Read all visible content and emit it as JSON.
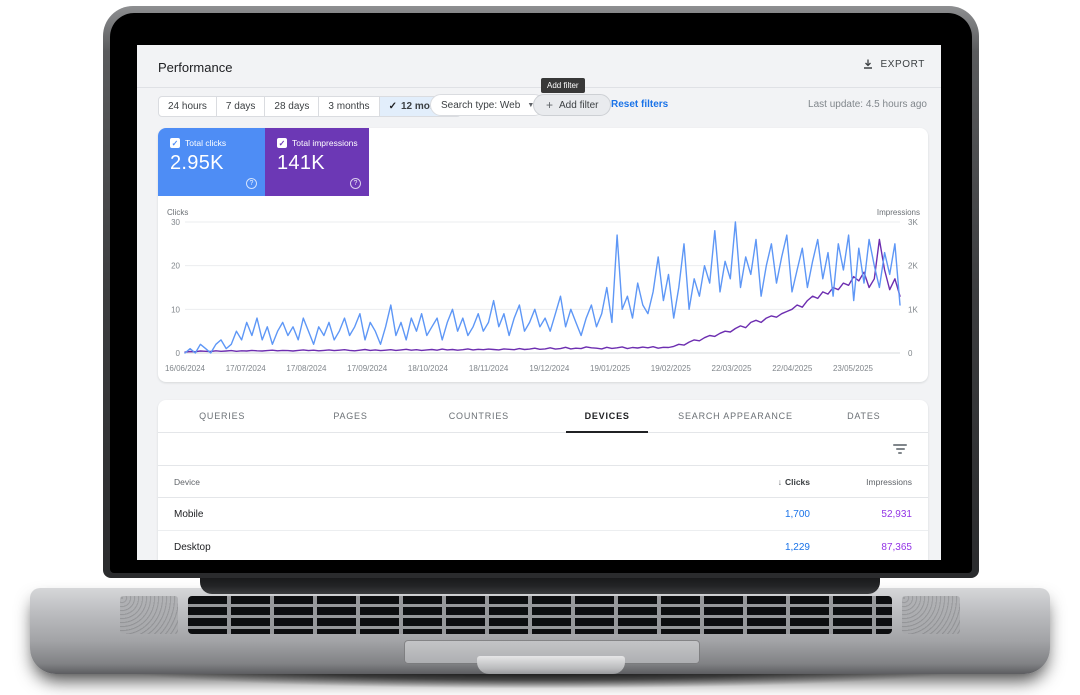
{
  "header": {
    "title": "Performance",
    "export_label": "EXPORT",
    "last_update": "Last update: 4.5 hours ago"
  },
  "filters": {
    "date_ranges": [
      {
        "label": "24 hours",
        "selected": false
      },
      {
        "label": "7 days",
        "selected": false
      },
      {
        "label": "28 days",
        "selected": false
      },
      {
        "label": "3 months",
        "selected": false
      },
      {
        "label": "12 months",
        "selected": true
      }
    ],
    "selected_check_glyph": "✓",
    "search_type_label": "Search type: Web",
    "dropdown_caret_glyph": "▼",
    "add_filter_plus_glyph": "+",
    "add_filter_label": "Add filter",
    "add_filter_tooltip": "Add filter",
    "reset_label": "Reset filters"
  },
  "metrics": [
    {
      "label": "Total clicks",
      "value": "2.95K",
      "color": "#4e8df5",
      "checked": true,
      "check_glyph": "✓",
      "help_glyph": "?"
    },
    {
      "label": "Total impressions",
      "value": "141K",
      "color": "#6c38b5",
      "checked": true,
      "check_glyph": "✓",
      "help_glyph": "?"
    }
  ],
  "chart_data": {
    "type": "line",
    "x_labels": [
      "16/06/2024",
      "17/07/2024",
      "17/08/2024",
      "17/09/2024",
      "18/10/2024",
      "18/11/2024",
      "19/12/2024",
      "19/01/2025",
      "19/02/2025",
      "22/03/2025",
      "22/04/2025",
      "23/05/2025"
    ],
    "left_axis": {
      "label": "Clicks",
      "ticks": [
        0,
        10,
        20,
        30
      ],
      "max": 30
    },
    "right_axis": {
      "label": "Impressions",
      "tick_labels": [
        "0",
        "1K",
        "2K",
        "3K"
      ],
      "ticks": [
        0,
        1000,
        2000,
        3000
      ],
      "max": 3000
    },
    "grid": true,
    "series": [
      {
        "name": "Total impressions",
        "axis": "right",
        "color": "#6d2eb0",
        "values": [
          20,
          35,
          30,
          45,
          40,
          35,
          50,
          40,
          45,
          55,
          40,
          50,
          45,
          60,
          50,
          45,
          55,
          65,
          50,
          60,
          55,
          45,
          60,
          70,
          55,
          65,
          50,
          60,
          70,
          55,
          65,
          75,
          60,
          50,
          65,
          80,
          60,
          70,
          55,
          65,
          75,
          60,
          70,
          85,
          65,
          75,
          60,
          70,
          80,
          65,
          90,
          70,
          80,
          65,
          75,
          95,
          70,
          85,
          75,
          90,
          80,
          70,
          95,
          85,
          75,
          100,
          80,
          90,
          110,
          85,
          95,
          120,
          90,
          100,
          130,
          95,
          110,
          100,
          140,
          120,
          110,
          95,
          130,
          105,
          120,
          140,
          100,
          125,
          115,
          135,
          120,
          145,
          110,
          130,
          125,
          150,
          200,
          180,
          250,
          300,
          280,
          350,
          400,
          380,
          450,
          500,
          480,
          560,
          620,
          580,
          700,
          750,
          700,
          800,
          850,
          820,
          900,
          950,
          1000,
          1100,
          1050,
          1200,
          1300,
          1250,
          1400,
          1350,
          1500,
          1450,
          1600,
          1550,
          1750,
          1650,
          1850,
          1500,
          1700,
          2600,
          1900,
          1450,
          1700,
          1300
        ]
      },
      {
        "name": "Total clicks",
        "axis": "left",
        "color": "#5e97f6",
        "values": [
          0,
          1,
          0,
          2,
          1,
          0,
          2,
          3,
          1,
          2,
          5,
          3,
          7,
          4,
          8,
          3,
          6,
          2,
          5,
          7,
          4,
          6,
          3,
          8,
          5,
          2,
          6,
          4,
          7,
          3,
          5,
          8,
          4,
          6,
          9,
          3,
          7,
          5,
          2,
          6,
          11,
          4,
          7,
          3,
          8,
          5,
          9,
          4,
          6,
          8,
          3,
          7,
          10,
          5,
          8,
          4,
          6,
          9,
          5,
          7,
          12,
          6,
          9,
          4,
          8,
          11,
          5,
          7,
          10,
          6,
          8,
          5,
          9,
          13,
          6,
          10,
          7,
          4,
          8,
          11,
          6,
          9,
          15,
          7,
          27,
          10,
          13,
          8,
          16,
          11,
          9,
          14,
          22,
          12,
          18,
          8,
          15,
          25,
          10,
          17,
          13,
          20,
          16,
          28,
          14,
          21,
          17,
          30,
          15,
          22,
          18,
          26,
          13,
          20,
          25,
          16,
          22,
          27,
          14,
          19,
          24,
          15,
          21,
          26,
          17,
          23,
          13,
          25,
          19,
          27,
          12,
          24,
          16,
          26,
          20,
          15,
          23,
          18,
          25,
          11
        ]
      }
    ]
  },
  "tabs": [
    {
      "label": "QUERIES",
      "active": false
    },
    {
      "label": "PAGES",
      "active": false
    },
    {
      "label": "COUNTRIES",
      "active": false
    },
    {
      "label": "DEVICES",
      "active": true
    },
    {
      "label": "SEARCH APPEARANCE",
      "active": false
    },
    {
      "label": "DATES",
      "active": false
    }
  ],
  "table": {
    "sort_arrow_glyph": "↓",
    "columns": [
      "Device",
      "Clicks",
      "Impressions"
    ],
    "rows": [
      {
        "device": "Mobile",
        "clicks": "1,700",
        "impressions": "52,931"
      },
      {
        "device": "Desktop",
        "clicks": "1,229",
        "impressions": "87,365"
      }
    ]
  }
}
